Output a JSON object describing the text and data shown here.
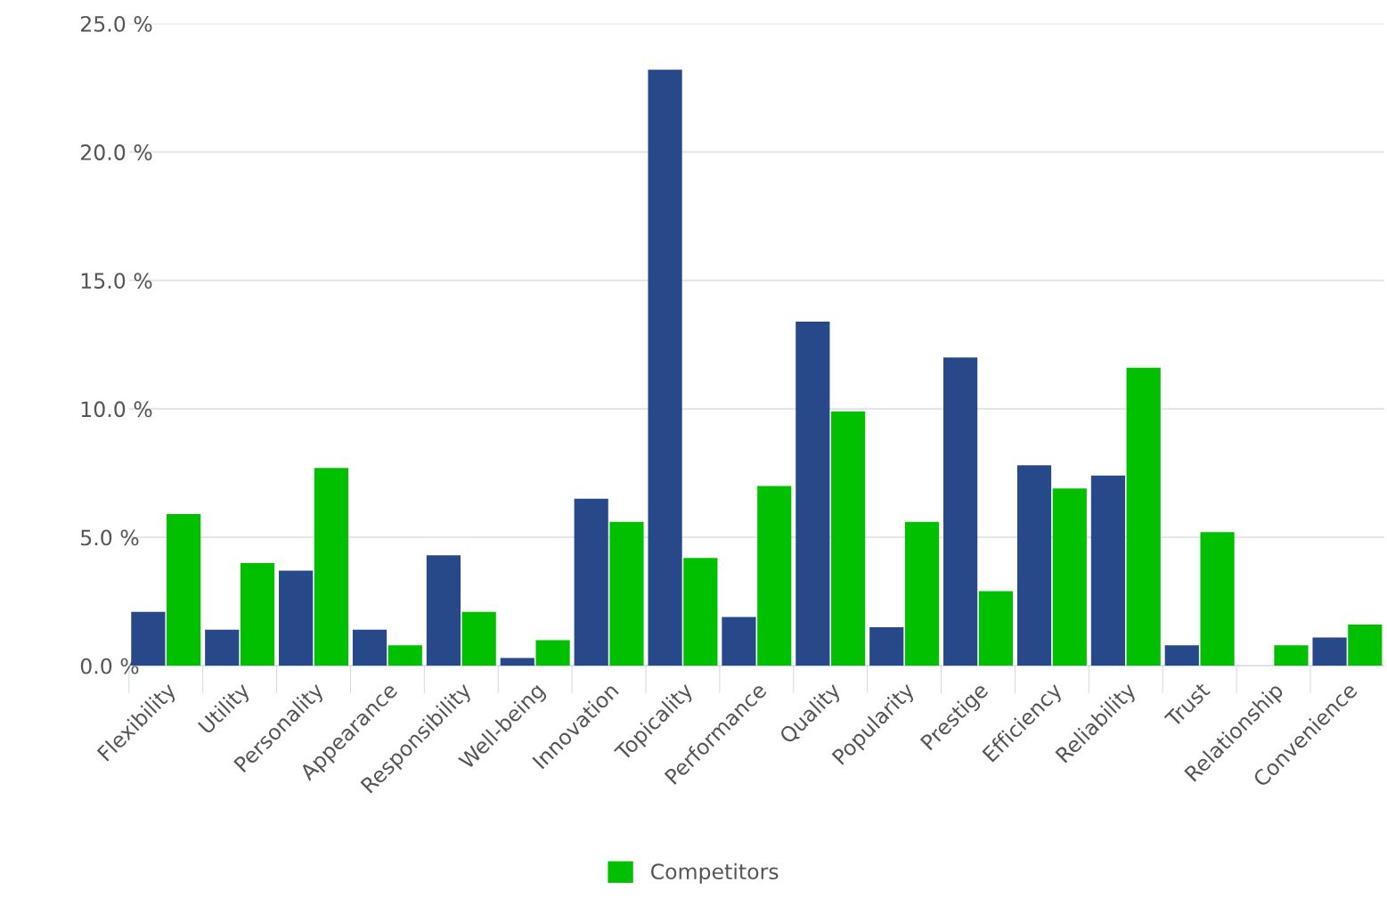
{
  "chart_data": {
    "type": "bar",
    "categories": [
      "Flexibility",
      "Utility",
      "Personality",
      "Appearance",
      "Responsibility",
      "Well-being",
      "Innovation",
      "Topicality",
      "Performance",
      "Quality",
      "Popularity",
      "Prestige",
      "Efficiency",
      "Reliability",
      "Trust",
      "Relationship",
      "Convenience"
    ],
    "series": [
      {
        "color": "#27498a",
        "values": [
          2.1,
          1.4,
          3.7,
          1.4,
          4.3,
          0.3,
          6.5,
          23.2,
          1.9,
          13.4,
          1.5,
          12.0,
          7.8,
          7.4,
          0.8,
          0.0,
          1.1
        ]
      },
      {
        "name": "Competitors",
        "color": "#00c000",
        "values": [
          5.9,
          4.0,
          7.7,
          0.8,
          2.1,
          1.0,
          5.6,
          4.2,
          7.0,
          9.9,
          5.6,
          2.9,
          6.9,
          11.6,
          5.2,
          0.8,
          1.6
        ]
      }
    ],
    "ylim": [
      0,
      25
    ],
    "yticks": [
      {
        "value": 0,
        "label": "0.0 %"
      },
      {
        "value": 5,
        "label": "5.0 %"
      },
      {
        "value": 10,
        "label": "10.0 %"
      },
      {
        "value": 15,
        "label": "15.0 %"
      },
      {
        "value": 20,
        "label": "20.0 %"
      },
      {
        "value": 25,
        "label": "25.0 %"
      }
    ],
    "grid": "y",
    "legend": "bottom"
  }
}
